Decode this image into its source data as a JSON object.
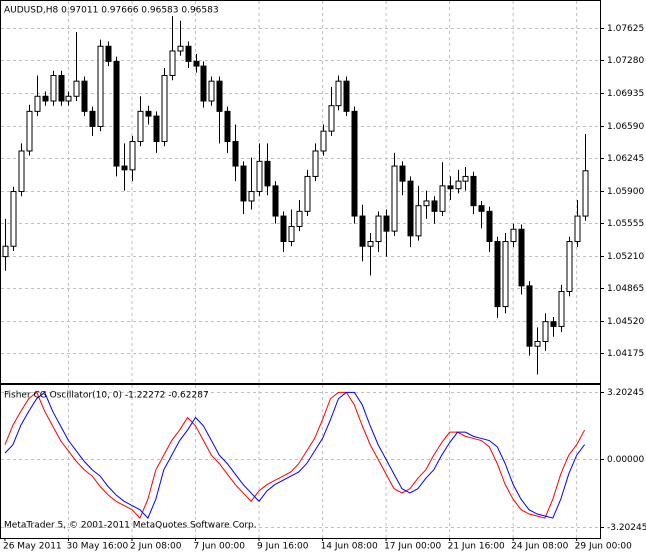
{
  "chart_data": [
    {
      "type": "candlestick",
      "title": "AUDUSD,H8  0.97011 0.97666 0.96583 0.96583",
      "categories": [
        "26 May 2011",
        null,
        null,
        null,
        null,
        null,
        null,
        null,
        "30 May 16:00",
        null,
        null,
        null,
        null,
        null,
        null,
        null,
        "2 Jun 08:00",
        null,
        null,
        null,
        null,
        null,
        null,
        null,
        "7 Jun 00:00",
        null,
        null,
        null,
        null,
        null,
        null,
        null,
        "9 Jun 16:00",
        null,
        null,
        null,
        null,
        null,
        null,
        null,
        "14 Jun 08:00",
        null,
        null,
        null,
        null,
        null,
        null,
        null,
        "17 Jun 00:00",
        null,
        null,
        null,
        null,
        null,
        null,
        null,
        "21 Jun 16:00",
        null,
        null,
        null,
        null,
        null,
        null,
        null,
        "24 Jun 08:00",
        null,
        null,
        null,
        null,
        null,
        null,
        null,
        "29 Jun 00:00",
        null
      ],
      "open": [
        1.052,
        1.0531,
        1.0589,
        1.0632,
        1.0674,
        1.069,
        1.0685,
        1.0712,
        1.0685,
        1.069,
        1.0706,
        1.0674,
        1.0658,
        1.0743,
        1.0727,
        1.0616,
        1.0612,
        1.0642,
        1.0674,
        1.0669,
        1.0642,
        1.0712,
        1.0738,
        1.0743,
        1.0727,
        1.0722,
        1.0685,
        1.0706,
        1.0674,
        1.0642,
        1.0616,
        1.0579,
        1.0589,
        1.0621,
        1.0595,
        1.0563,
        1.0536,
        1.0552,
        1.0568,
        1.0605,
        1.0632,
        1.0653,
        1.068,
        1.0706,
        1.0674,
        1.0563,
        1.0531,
        1.0536,
        1.0563,
        1.0547,
        1.0616,
        1.06,
        1.0542,
        1.0574,
        1.0579,
        1.0568,
        1.0595,
        1.0592,
        1.06,
        1.0605,
        1.0574,
        1.0568,
        1.0536,
        1.0467,
        1.0536,
        1.0549,
        1.0489,
        1.0425,
        1.043,
        1.0451,
        1.0446,
        1.0483,
        1.0536,
        1.0563
      ],
      "high": [
        1.056,
        1.0594,
        1.064,
        1.0681,
        1.0712,
        1.0695,
        1.0717,
        1.0717,
        1.0695,
        1.0758,
        1.0711,
        1.0679,
        1.075,
        1.0748,
        1.0732,
        1.064,
        1.0648,
        1.069,
        1.068,
        1.0674,
        1.072,
        1.0775,
        1.077,
        1.0748,
        1.0735,
        1.0727,
        1.0711,
        1.0711,
        1.0679,
        1.066,
        1.0621,
        1.0625,
        1.064,
        1.064,
        1.06,
        1.0568,
        1.057,
        1.058,
        1.0612,
        1.064,
        1.066,
        1.07,
        1.0712,
        1.0711,
        1.0679,
        1.0575,
        1.0545,
        1.0568,
        1.057,
        1.063,
        1.0621,
        1.0605,
        1.0595,
        1.059,
        1.0584,
        1.062,
        1.0605,
        1.0612,
        1.0615,
        1.061,
        1.0579,
        1.0573,
        1.0541,
        1.0545,
        1.0555,
        1.0554,
        1.0494,
        1.0445,
        1.046,
        1.0456,
        1.049,
        1.0541,
        1.058,
        1.065
      ],
      "low": [
        1.0505,
        1.0526,
        1.0584,
        1.0627,
        1.0669,
        1.068,
        1.068,
        1.068,
        1.068,
        1.0685,
        1.0669,
        1.0648,
        1.0653,
        1.0722,
        1.0605,
        1.059,
        1.06,
        1.0637,
        1.066,
        1.063,
        1.0637,
        1.0707,
        1.0733,
        1.072,
        1.0715,
        1.0678,
        1.068,
        1.064,
        1.063,
        1.06,
        1.0565,
        1.057,
        1.0584,
        1.0585,
        1.0555,
        1.0525,
        1.0531,
        1.0547,
        1.0563,
        1.06,
        1.0627,
        1.0648,
        1.0675,
        1.0669,
        1.0555,
        1.0515,
        1.05,
        1.0525,
        1.052,
        1.0542,
        1.0585,
        1.053,
        1.0537,
        1.056,
        1.0555,
        1.0563,
        1.058,
        1.0587,
        1.059,
        1.0565,
        1.055,
        1.0525,
        1.0455,
        1.046,
        1.053,
        1.048,
        1.0415,
        1.0395,
        1.042,
        1.0435,
        1.044,
        1.0478,
        1.053,
        1.0558
      ],
      "close": [
        1.0531,
        1.0589,
        1.0632,
        1.0674,
        1.069,
        1.0685,
        1.0712,
        1.0685,
        1.069,
        1.0706,
        1.0674,
        1.0658,
        1.0743,
        1.0727,
        1.0616,
        1.0612,
        1.0642,
        1.0674,
        1.0669,
        1.0642,
        1.0712,
        1.0738,
        1.0743,
        1.0727,
        1.0722,
        1.0685,
        1.0706,
        1.0674,
        1.0642,
        1.0616,
        1.0579,
        1.0589,
        1.0621,
        1.0595,
        1.0563,
        1.0536,
        1.0552,
        1.0568,
        1.0605,
        1.0632,
        1.0653,
        1.068,
        1.0706,
        1.0674,
        1.0563,
        1.0531,
        1.0536,
        1.0563,
        1.0547,
        1.0616,
        1.06,
        1.0542,
        1.0574,
        1.0579,
        1.0568,
        1.0595,
        1.0592,
        1.06,
        1.0605,
        1.0574,
        1.0568,
        1.0536,
        1.0467,
        1.0536,
        1.0549,
        1.0489,
        1.0425,
        1.043,
        1.0451,
        1.0446,
        1.0483,
        1.0536,
        1.0563,
        1.0611
      ],
      "up_color": "#ffffff",
      "down_color": "#000000",
      "ylim": [
        1.0386,
        1.0791
      ],
      "yticks": [
        1.07625,
        {
          "value": 1.0728,
          "label": "1.07280"
        },
        1.06935,
        {
          "value": 1.0659,
          "label": "1.06590"
        },
        1.06245,
        {
          "value": 1.059,
          "label": "1.05900"
        },
        1.05555,
        {
          "value": 1.0521,
          "label": "1.05210"
        },
        1.04865,
        {
          "value": 1.0452,
          "label": "1.04520"
        },
        1.04175
      ],
      "grid": true
    },
    {
      "type": "line",
      "title": "Fisher CG Oscillator(10, 0) -1.22272 -0.62287",
      "annotation": "MetaTrader 5, © 2001-2011 MetaQuotes Software Corp.",
      "series": [
        {
          "color": "#ff0000",
          "values": [
            0.7,
            1.63,
            2.3,
            2.9,
            3.2,
            2.3,
            1.6,
            0.9,
            0.4,
            -0.1,
            -0.5,
            -0.8,
            -1.3,
            -1.7,
            -2.0,
            -2.2,
            -2.4,
            -2.8,
            -1.9,
            -0.5,
            0.2,
            0.9,
            1.4,
            2.0,
            1.6,
            0.9,
            0.2,
            -0.2,
            -0.7,
            -1.2,
            -1.6,
            -2.0,
            -1.5,
            -1.2,
            -1.0,
            -0.8,
            -0.6,
            -0.2,
            0.4,
            1.0,
            1.9,
            2.9,
            3.2,
            3.2,
            2.6,
            1.6,
            0.7,
            0,
            -0.7,
            -1.4,
            -1.6,
            -1.4,
            -0.9,
            -0.5,
            0.2,
            0.8,
            1.3,
            1.3,
            1.1,
            1.0,
            0.9,
            0.6,
            -0.2,
            -1.2,
            -1.9,
            -2.4,
            -2.6,
            -2.7,
            -2.8,
            -1.9,
            -0.7,
            0.2,
            0.7,
            1.4
          ]
        },
        {
          "color": "#0000ff",
          "values": [
            0.3,
            0.7,
            1.63,
            2.3,
            2.9,
            3.2,
            2.3,
            1.6,
            0.9,
            0.4,
            -0.1,
            -0.5,
            -0.8,
            -1.3,
            -1.7,
            -2.0,
            -2.2,
            -2.4,
            -2.8,
            -1.9,
            -0.5,
            0.2,
            0.9,
            1.4,
            2.0,
            1.6,
            0.9,
            0.2,
            -0.2,
            -0.7,
            -1.2,
            -1.6,
            -2.0,
            -1.5,
            -1.2,
            -1.0,
            -0.8,
            -0.6,
            -0.2,
            0.4,
            1.0,
            1.9,
            2.9,
            3.2,
            3.2,
            2.6,
            1.6,
            0.7,
            0,
            -0.7,
            -1.4,
            -1.6,
            -1.4,
            -0.9,
            -0.5,
            0.2,
            0.8,
            1.3,
            1.3,
            1.1,
            1.0,
            0.9,
            0.6,
            -0.2,
            -1.2,
            -1.9,
            -2.4,
            -2.6,
            -2.7,
            -2.8,
            -1.9,
            -0.7,
            0.2,
            0.7
          ]
        }
      ],
      "ylim": [
        -3.75,
        3.55
      ],
      "yticks": [
        3.20245,
        {
          "value": 0,
          "label": "0.00000"
        },
        -3.20245
      ],
      "grid": true
    }
  ]
}
